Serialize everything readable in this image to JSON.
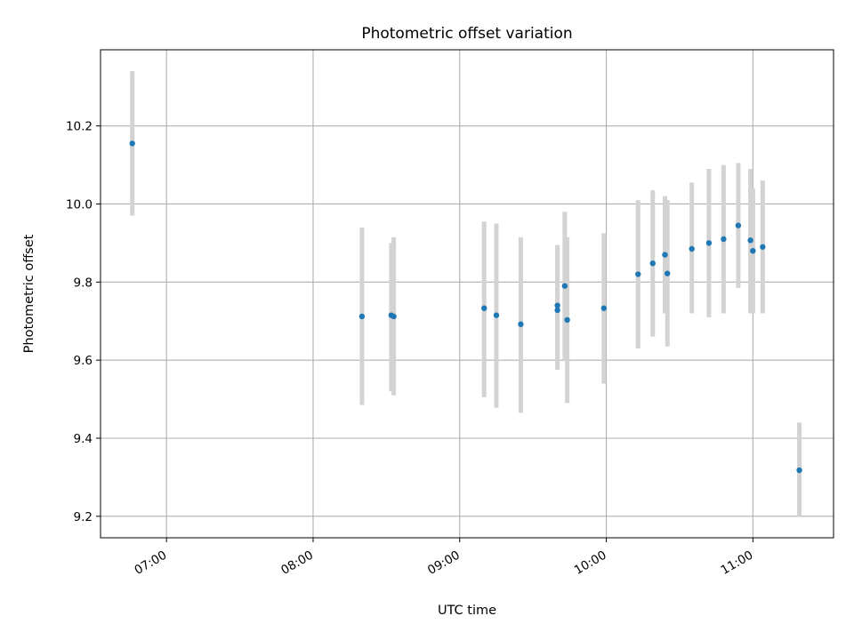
{
  "chart_data": {
    "type": "scatter",
    "title": "Photometric offset variation",
    "xlabel": "UTC time",
    "ylabel": "Photometric offset",
    "x_tick_labels": [
      "07:00",
      "08:00",
      "09:00",
      "10:00",
      "11:00"
    ],
    "y_tick_labels": [
      "9.2",
      "9.4",
      "9.6",
      "9.8",
      "10.0",
      "10.2"
    ],
    "y_ticks": [
      9.2,
      9.4,
      9.6,
      9.8,
      10.0,
      10.2
    ],
    "x_ticks": [
      "07:00",
      "08:00",
      "09:00",
      "10:00",
      "11:00"
    ],
    "xlim": [
      "06:33",
      "11:33"
    ],
    "ylim": [
      9.145,
      10.395
    ],
    "grid": true,
    "colors": {
      "point": "#1f77b4",
      "errorbar": "#d3d3d3",
      "grid": "#b0b0b0"
    },
    "points": [
      {
        "x": "06:46",
        "y": 10.155,
        "y_low": 9.97,
        "y_high": 10.34
      },
      {
        "x": "08:20",
        "y": 9.712,
        "y_low": 9.485,
        "y_high": 9.94
      },
      {
        "x": "08:32",
        "y": 9.715,
        "y_low": 9.52,
        "y_high": 9.9
      },
      {
        "x": "08:33",
        "y": 9.712,
        "y_low": 9.51,
        "y_high": 9.915
      },
      {
        "x": "09:10",
        "y": 9.733,
        "y_low": 9.505,
        "y_high": 9.955
      },
      {
        "x": "09:15",
        "y": 9.715,
        "y_low": 9.478,
        "y_high": 9.95
      },
      {
        "x": "09:25",
        "y": 9.692,
        "y_low": 9.465,
        "y_high": 9.915
      },
      {
        "x": "09:40",
        "y": 9.74,
        "y_low": 9.6,
        "y_high": 9.89
      },
      {
        "x": "09:40",
        "y": 9.728,
        "y_low": 9.575,
        "y_high": 9.895
      },
      {
        "x": "09:43",
        "y": 9.79,
        "y_low": 9.6,
        "y_high": 9.98
      },
      {
        "x": "09:44",
        "y": 9.703,
        "y_low": 9.49,
        "y_high": 9.915
      },
      {
        "x": "09:59",
        "y": 9.733,
        "y_low": 9.54,
        "y_high": 9.925
      },
      {
        "x": "10:13",
        "y": 9.82,
        "y_low": 9.63,
        "y_high": 10.01
      },
      {
        "x": "10:19",
        "y": 9.848,
        "y_low": 9.66,
        "y_high": 10.035
      },
      {
        "x": "10:24",
        "y": 9.87,
        "y_low": 9.72,
        "y_high": 10.02
      },
      {
        "x": "10:25",
        "y": 9.822,
        "y_low": 9.635,
        "y_high": 10.01
      },
      {
        "x": "10:35",
        "y": 9.885,
        "y_low": 9.72,
        "y_high": 10.055
      },
      {
        "x": "10:42",
        "y": 9.9,
        "y_low": 9.71,
        "y_high": 10.09
      },
      {
        "x": "10:48",
        "y": 9.91,
        "y_low": 9.72,
        "y_high": 10.1
      },
      {
        "x": "10:54",
        "y": 9.945,
        "y_low": 9.785,
        "y_high": 10.105
      },
      {
        "x": "10:59",
        "y": 9.907,
        "y_low": 9.72,
        "y_high": 10.09
      },
      {
        "x": "11:00",
        "y": 9.88,
        "y_low": 9.72,
        "y_high": 10.04
      },
      {
        "x": "11:04",
        "y": 9.89,
        "y_low": 9.72,
        "y_high": 10.06
      },
      {
        "x": "11:19",
        "y": 9.318,
        "y_low": 9.2,
        "y_high": 9.44
      }
    ]
  }
}
